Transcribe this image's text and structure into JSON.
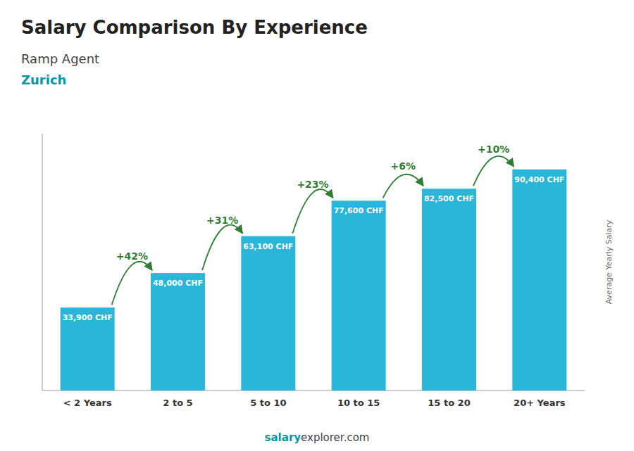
{
  "chart_data": {
    "type": "bar",
    "title": "Salary Comparison By Experience",
    "subtitle": "Ramp Agent",
    "location": "Zurich",
    "ylabel": "Average Yearly Salary",
    "categories": [
      "< 2 Years",
      "2 to 5",
      "5 to 10",
      "10 to 15",
      "15 to 20",
      "20+ Years"
    ],
    "values": [
      33900,
      48000,
      63100,
      77600,
      82500,
      90400
    ],
    "value_labels": [
      "33,900 CHF",
      "48,000 CHF",
      "63,100 CHF",
      "77,600 CHF",
      "82,500 CHF",
      "90,400 CHF"
    ],
    "data_labels": true,
    "annotations": [
      "+42%",
      "+31%",
      "+23%",
      "+6%",
      "+10%"
    ],
    "footer": [
      "salary",
      "explorer.com"
    ],
    "color": "#29b6d8",
    "ylim": [
      0,
      105000
    ],
    "tick_labels": "x",
    "grid": false
  }
}
